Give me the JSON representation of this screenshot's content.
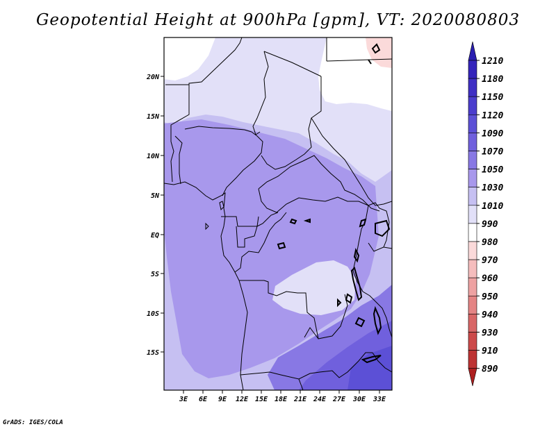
{
  "title": "Geopotential Height at 900hPa [gpm], VT: 2020080803",
  "credit": "GrADS: IGES/COLA",
  "map": {
    "lat_labels": [
      "20N",
      "15N",
      "10N",
      "5N",
      "EQ",
      "5S",
      "10S",
      "15S"
    ],
    "lon_labels": [
      "3E",
      "6E",
      "9E",
      "12E",
      "15E",
      "18E",
      "21E",
      "24E",
      "27E",
      "30E",
      "33E"
    ]
  },
  "colorbar": {
    "levels": [
      "1210",
      "1180",
      "1150",
      "1120",
      "1090",
      "1070",
      "1050",
      "1030",
      "1010",
      "990",
      "980",
      "970",
      "960",
      "950",
      "940",
      "930",
      "910",
      "890"
    ],
    "colors": [
      "#2a1eb0",
      "#3424bb",
      "#3f2fc4",
      "#4b3dcd",
      "#5c50d6",
      "#7060dd",
      "#8878e4",
      "#a898ec",
      "#c6c0f2",
      "#e2e0f8",
      "#ffffff",
      "#fbdada",
      "#f5bdbd",
      "#eea2a2",
      "#e48484",
      "#d86666",
      "#cc4a4a",
      "#bd3333",
      "#ad1f1f"
    ]
  }
}
